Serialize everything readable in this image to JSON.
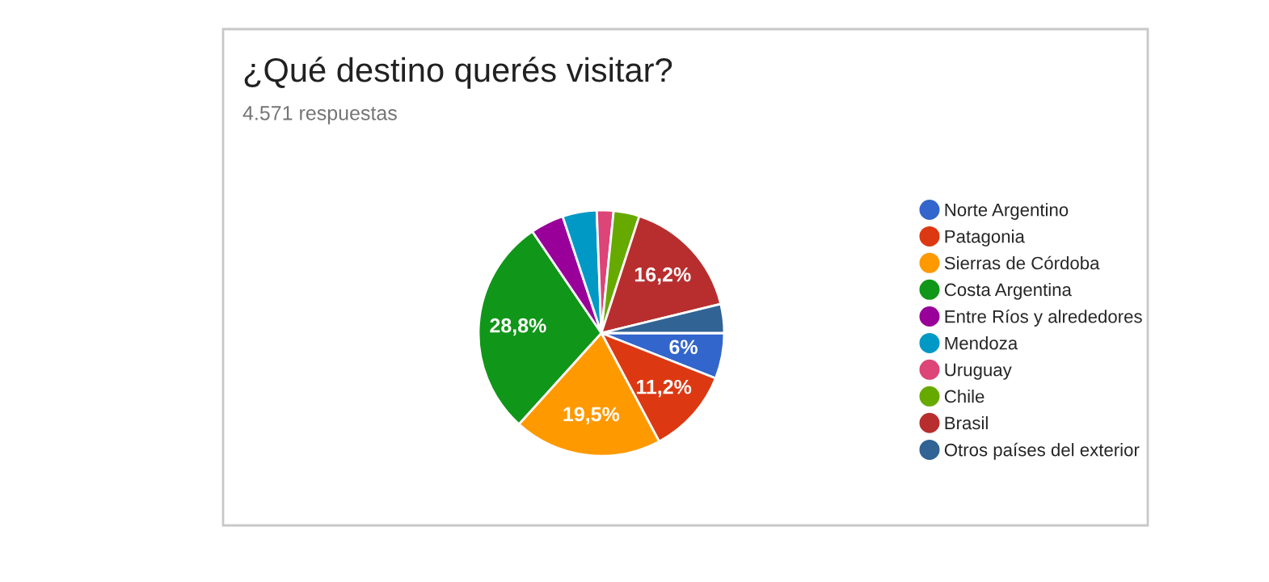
{
  "chart_data": {
    "type": "pie",
    "title": "¿Qué destino querés visitar?",
    "subtitle": "4.571 respuestas",
    "categories": [
      "Norte Argentino",
      "Patagonia",
      "Sierras de Córdoba",
      "Costa Argentina",
      "Entre Ríos y alrededores",
      "Mendoza",
      "Uruguay",
      "Chile",
      "Brasil",
      "Otros países del exterior"
    ],
    "values": [
      6,
      11.2,
      19.5,
      28.8,
      4.4,
      4.5,
      2.2,
      3.4,
      16.2,
      3.8
    ],
    "value_labels": [
      "6%",
      "11,2%",
      "19,5%",
      "28,8%",
      null,
      null,
      null,
      null,
      "16,2%",
      null
    ],
    "colors": [
      "#3366cc",
      "#dc3912",
      "#ff9900",
      "#109618",
      "#990099",
      "#0099c6",
      "#dd4477",
      "#66aa00",
      "#b82e2e",
      "#316395"
    ],
    "legend": "right"
  }
}
